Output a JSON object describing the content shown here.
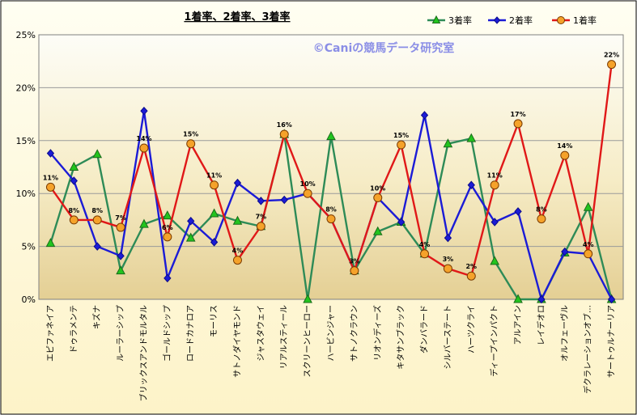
{
  "chart_data": {
    "type": "line",
    "title": "1着率、2着率、3着率",
    "watermark": "©Caniの競馬データ研究室",
    "ylim": [
      0,
      25
    ],
    "y_ticks": [
      "0%",
      "5%",
      "10%",
      "15%",
      "20%",
      "25%"
    ],
    "grid": true,
    "legend_position": "top-right",
    "categories": [
      "エピファネイア",
      "ドゥラメンテ",
      "キズナ",
      "ルーラーシップ",
      "ブリックスアンドモルタル",
      "ゴールドシップ",
      "ロードカナロア",
      "モーリス",
      "サトノダイヤモンド",
      "ジャスタウェイ",
      "リアルスティール",
      "スクリーンヒーロー",
      "ハービンジャー",
      "サトノクラウン",
      "リオンディーズ",
      "キタサンブラック",
      "ダンバラード",
      "シルバーステート",
      "ハーツクライ",
      "ディープインパクト",
      "アルアイン",
      "レイデオロ",
      "オルフェーヴル",
      "デクラレーションオブ…",
      "サートゥルナーリア"
    ],
    "series": [
      {
        "name": "3着率",
        "color": "#2e8b57",
        "marker": "triangle",
        "marker_color": "#22c41e",
        "values": [
          5.3,
          12.5,
          13.7,
          2.7,
          7.1,
          7.9,
          5.8,
          8.1,
          7.4,
          6.9,
          15.6,
          0,
          15.4,
          2.7,
          6.4,
          7.3,
          4.3,
          14.7,
          15.2,
          3.6,
          0,
          0,
          4.4,
          8.7,
          0
        ]
      },
      {
        "name": "2着率",
        "color": "#1b1bd6",
        "marker": "diamond",
        "marker_color": "#1b1bd6",
        "values": [
          13.8,
          11.2,
          5.0,
          4.1,
          17.8,
          2.0,
          7.4,
          5.4,
          11.0,
          9.3,
          9.4,
          10.0,
          7.6,
          2.7,
          9.6,
          7.3,
          17.4,
          5.8,
          10.8,
          7.3,
          8.3,
          0,
          4.5,
          4.3,
          0
        ]
      },
      {
        "name": "1着率",
        "color": "#e01818",
        "marker": "circle",
        "marker_color": "#f5a22a",
        "values": [
          10.6,
          7.5,
          7.5,
          6.8,
          14.3,
          5.9,
          14.7,
          10.8,
          3.7,
          6.9,
          15.6,
          10.0,
          7.6,
          2.7,
          9.6,
          14.6,
          4.3,
          2.9,
          2.2,
          10.8,
          16.6,
          7.6,
          13.6,
          4.3,
          22.2
        ]
      }
    ],
    "data_labels": {
      "series": "1着率",
      "labels": [
        "11%",
        "8%",
        "8%",
        "7%",
        "14%",
        "6%",
        "15%",
        "11%",
        "4%",
        "7%",
        "16%",
        "10%",
        "8%",
        "3%",
        "10%",
        "15%",
        "4%",
        "3%",
        "2%",
        "11%",
        "17%",
        "8%",
        "14%",
        "4%",
        "22%"
      ]
    }
  }
}
